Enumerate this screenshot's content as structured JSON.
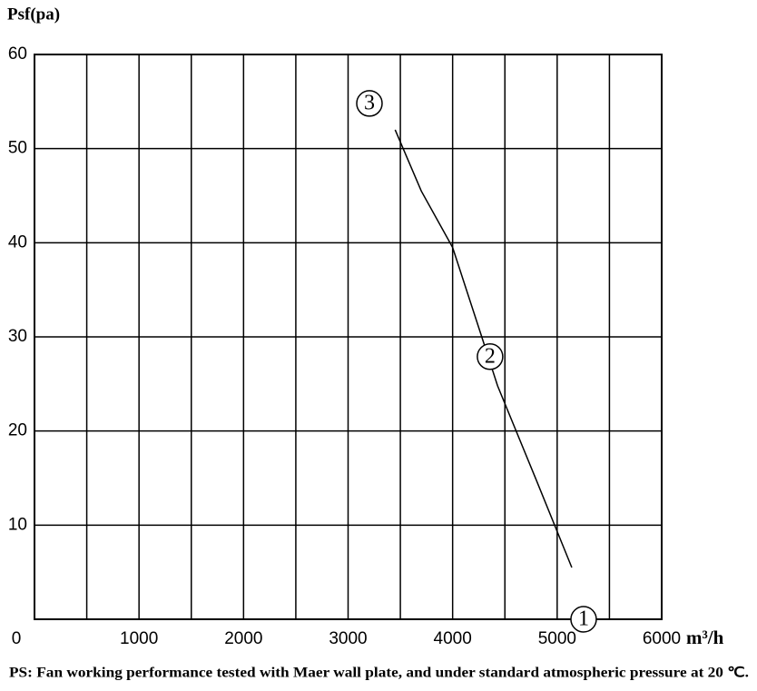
{
  "chart_data": {
    "type": "line",
    "y_label": "Psf(pa)",
    "x_label": "m³/h",
    "note": "PS: Fan working performance tested with Maer wall plate, and under standard atmospheric pressure at 20 ℃.",
    "xlim": [
      0,
      6000
    ],
    "ylim": [
      0,
      60
    ],
    "xticks": [
      0,
      1000,
      2000,
      3000,
      4000,
      5000,
      6000
    ],
    "yticks": [
      10,
      20,
      30,
      40,
      50,
      60
    ],
    "x_grid": [
      500,
      1000,
      1500,
      2000,
      2500,
      3000,
      3500,
      4000,
      4500,
      5000,
      5500
    ],
    "grid": true,
    "series": [
      {
        "color": "#000000",
        "x": [
          3450,
          3700,
          4000,
          4270,
          4430,
          4800,
          5140
        ],
        "y": [
          52,
          45.5,
          39.5,
          30.3,
          24.8,
          14.8,
          5.5
        ]
      }
    ],
    "points": [
      {
        "label": "3",
        "x": 3204,
        "y": 54.8
      },
      {
        "label": "2",
        "x": 4358,
        "y": 27.9
      },
      {
        "label": "1",
        "x": 5253,
        "y": 0
      }
    ]
  }
}
